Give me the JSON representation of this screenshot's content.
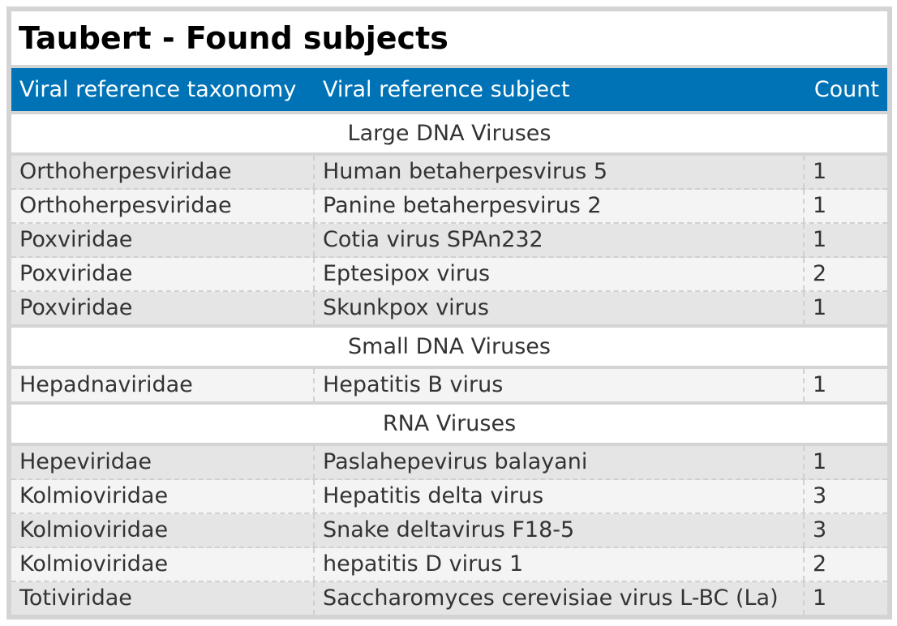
{
  "title": "Taubert - Found subjects",
  "columns": {
    "taxonomy": "Viral reference taxonomy",
    "subject": "Viral reference subject",
    "count": "Count"
  },
  "groups": [
    {
      "name": "Large DNA Viruses",
      "rows": [
        {
          "taxonomy": "Orthoherpesviridae",
          "subject": "Human betaherpesvirus 5",
          "count": "1"
        },
        {
          "taxonomy": "Orthoherpesviridae",
          "subject": "Panine betaherpesvirus 2",
          "count": "1"
        },
        {
          "taxonomy": "Poxviridae",
          "subject": "Cotia virus SPAn232",
          "count": "1"
        },
        {
          "taxonomy": "Poxviridae",
          "subject": "Eptesipox virus",
          "count": "2"
        },
        {
          "taxonomy": "Poxviridae",
          "subject": "Skunkpox virus",
          "count": "1"
        }
      ]
    },
    {
      "name": "Small DNA Viruses",
      "rows": [
        {
          "taxonomy": "Hepadnaviridae",
          "subject": "Hepatitis B virus",
          "count": "1"
        }
      ]
    },
    {
      "name": "RNA Viruses",
      "rows": [
        {
          "taxonomy": "Hepeviridae",
          "subject": "Paslahepevirus balayani",
          "count": "1"
        },
        {
          "taxonomy": "Kolmioviridae",
          "subject": "Hepatitis delta virus",
          "count": "3"
        },
        {
          "taxonomy": "Kolmioviridae",
          "subject": "Snake deltavirus F18-5",
          "count": "3"
        },
        {
          "taxonomy": "Kolmioviridae",
          "subject": "hepatitis D virus 1",
          "count": "2"
        },
        {
          "taxonomy": "Totiviridae",
          "subject": "Saccharomyces cerevisiae virus L-BC (La)",
          "count": "1"
        }
      ]
    }
  ]
}
